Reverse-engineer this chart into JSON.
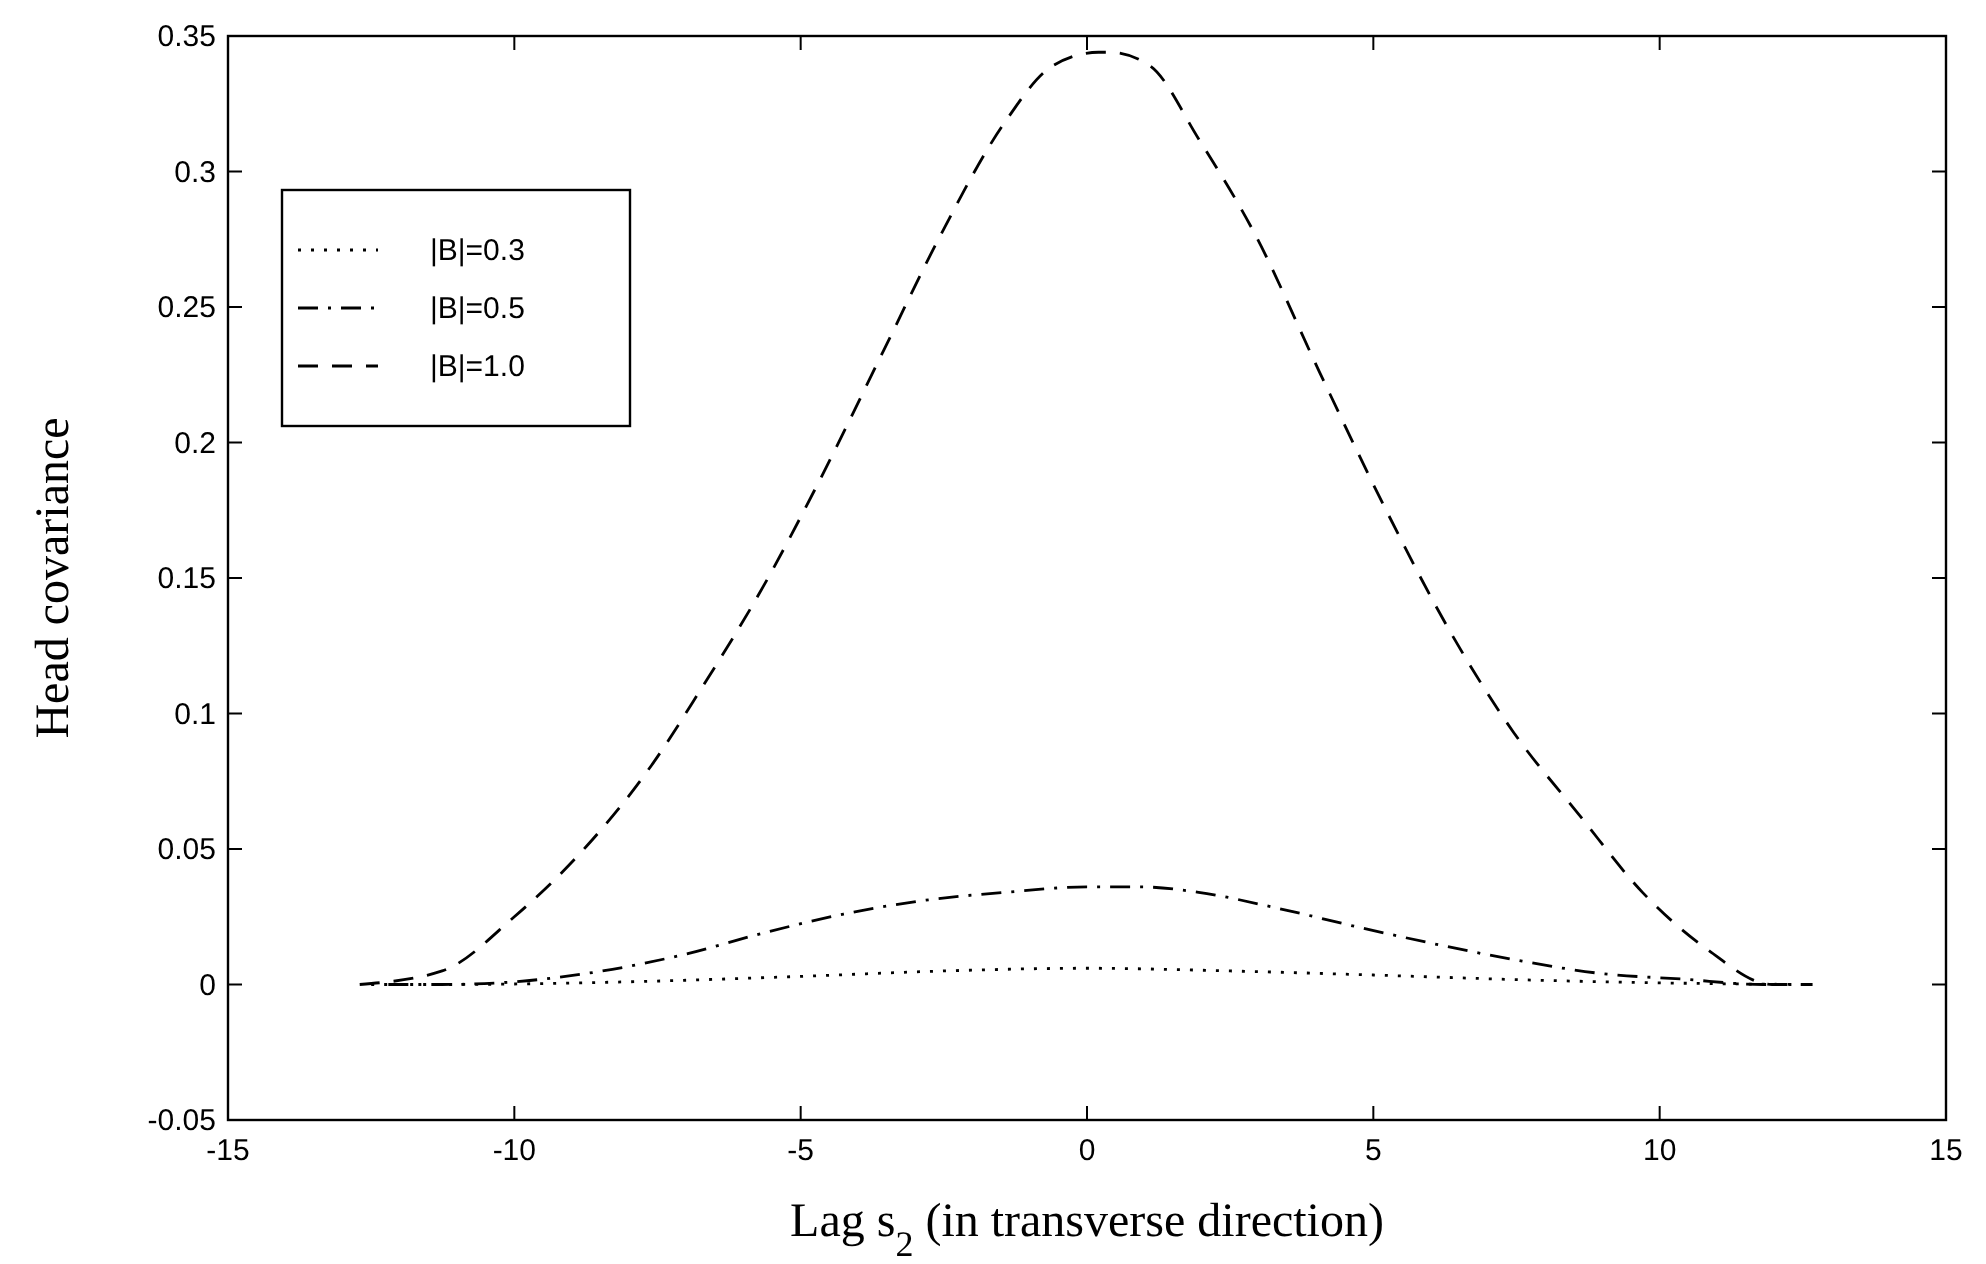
{
  "chart_data": {
    "type": "line",
    "xlabel": "Lag s$_{2}$ (in transverse direction)",
    "ylabel": "Head covariance",
    "xlim": [
      -15,
      15
    ],
    "xticks": [
      -15,
      -10,
      -5,
      0,
      5,
      10,
      15
    ],
    "ylim": [
      -0.05,
      0.35
    ],
    "yticks": [
      -0.05,
      0,
      0.05,
      0.1,
      0.15,
      0.2,
      0.25,
      0.3,
      0.35
    ],
    "legend": "top left",
    "grid": false,
    "series": [
      {
        "name": "|B|=0.3",
        "color": "#000000",
        "line_style": "dotted",
        "x": [
          -12.5,
          -11.3,
          -8,
          -5,
          -2.5,
          0,
          2.5,
          5,
          8,
          11,
          12.5
        ],
        "values": [
          0,
          0,
          0.001,
          0.003,
          0.005,
          0.006,
          0.005,
          0.0035,
          0.0015,
          0.0003,
          0
        ]
      },
      {
        "name": "|B|=0.5",
        "color": "#000000",
        "line_style": "dashdot",
        "x": [
          -12.2,
          -11.26,
          -10,
          -8.46,
          -7.05,
          -5.65,
          -4.25,
          -2.85,
          -1.44,
          0,
          0.96,
          1.95,
          3.36,
          4.77,
          6.18,
          7.6,
          9,
          10.4,
          11.8,
          12.3
        ],
        "values": [
          0,
          0,
          0.001,
          0.005,
          0.011,
          0.019,
          0.026,
          0.031,
          0.034,
          0.036,
          0.036,
          0.034,
          0.028,
          0.021,
          0.0145,
          0.0086,
          0.004,
          0.002,
          0,
          0
        ]
      },
      {
        "name": "|B|=1.0",
        "color": "#000000",
        "line_style": "dashed",
        "x": [
          -12.7,
          -11.26,
          -10,
          -8.74,
          -7.6,
          -6.77,
          -5.65,
          -4.67,
          -3.55,
          -2.57,
          -1.44,
          -0.6,
          0.2,
          0.4,
          1.1,
          1.95,
          2.93,
          4.06,
          5.2,
          6.32,
          7.45,
          8.58,
          9.7,
          10.83,
          11.96,
          12.67
        ],
        "values": [
          0,
          0.005,
          0.025,
          0.051,
          0.081,
          0.108,
          0.147,
          0.186,
          0.234,
          0.276,
          0.318,
          0.339,
          0.344,
          0.344,
          0.339,
          0.312,
          0.277,
          0.226,
          0.176,
          0.131,
          0.093,
          0.063,
          0.034,
          0.013,
          0,
          0
        ]
      }
    ]
  }
}
